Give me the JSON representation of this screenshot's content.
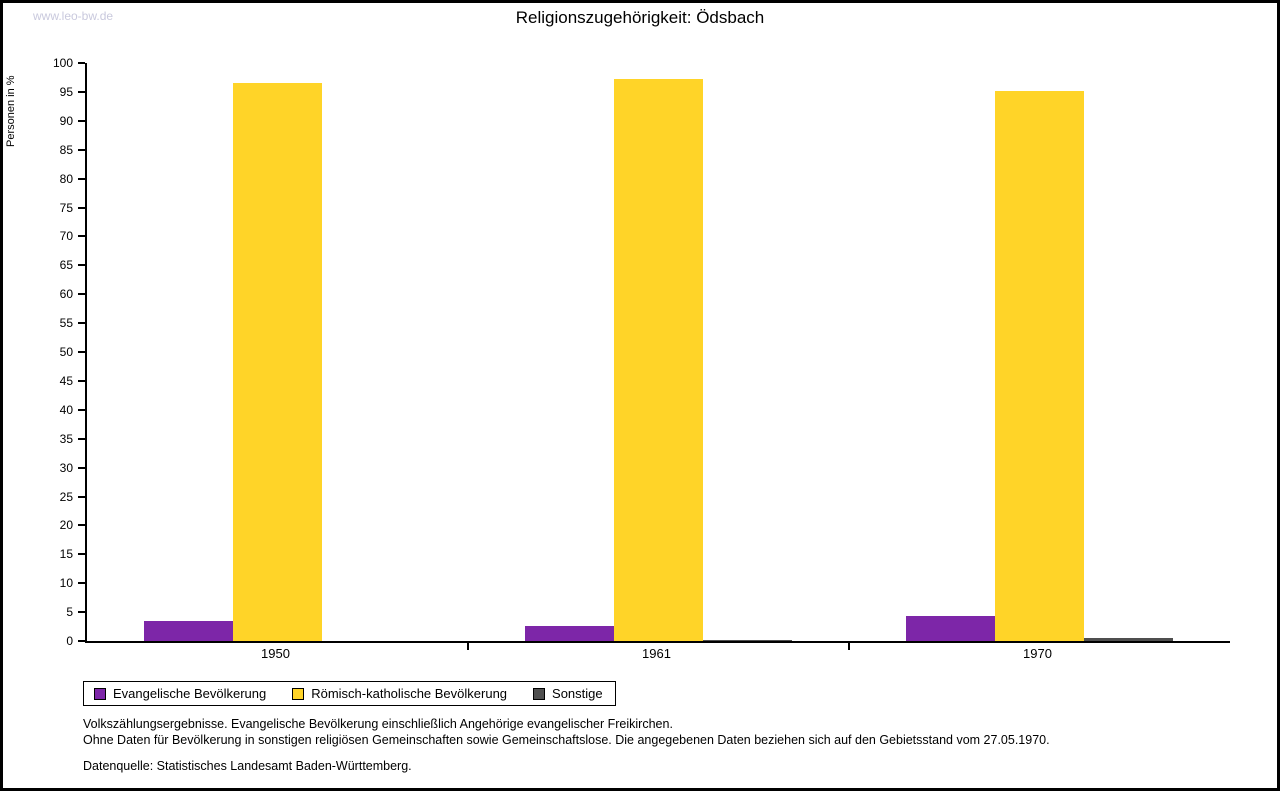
{
  "watermark": "www.leo-bw.de",
  "chart_data": {
    "type": "bar",
    "title": "Religionszugehörigkeit: Ödsbach",
    "ylabel": "Personen in %",
    "xlabel": "",
    "ylim": [
      0,
      100
    ],
    "ytick_step": 5,
    "grid": false,
    "legend_position": "bottom-left",
    "categories": [
      "1950",
      "1961",
      "1970"
    ],
    "series": [
      {
        "name": "Evangelische Bevölkerung",
        "color": "#7d26a8",
        "values": [
          3.5,
          2.6,
          4.3
        ]
      },
      {
        "name": "Römisch-katholische Bevölkerung",
        "color": "#ffd428",
        "values": [
          96.5,
          97.3,
          95.2
        ]
      },
      {
        "name": "Sonstige",
        "color": "#4f4f4f",
        "values": [
          0.0,
          0.15,
          0.6
        ]
      }
    ]
  },
  "footnotes": [
    "Volkszählungsergebnisse. Evangelische Bevölkerung einschließlich Angehörige evangelischer Freikirchen.",
    "Ohne Daten für Bevölkerung in sonstigen religiösen Gemeinschaften sowie Gemeinschaftslose. Die angegebenen Daten beziehen sich auf den Gebietsstand vom 27.05.1970.",
    "Datenquelle: Statistisches Landesamt Baden-Württemberg."
  ]
}
